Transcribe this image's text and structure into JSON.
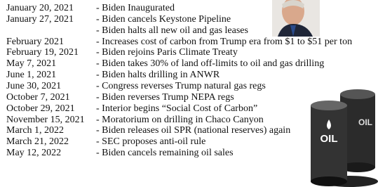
{
  "timeline": [
    {
      "date": "January 20, 2021",
      "event": "- Biden Inaugurated"
    },
    {
      "date": "January 27, 2021",
      "event": "- Biden cancels Keystone Pipeline"
    },
    {
      "event": "- Biden halts all new oil and gas leases"
    },
    {
      "date": "February 2021",
      "event": "- Increases cost of carbon from Trump era from $1 to $51 per ton"
    },
    {
      "date": "February 19, 2021",
      "event": "- Biden rejoins Paris Climate Treaty"
    },
    {
      "date": "May 7, 2021",
      "event": "- Biden takes 30% of land off-limits to oil and gas drilling"
    },
    {
      "date": "June 1, 2021",
      "event": "- Biden halts drilling in ANWR"
    },
    {
      "date": "June 30, 2021",
      "event": "- Congress reverses Trump natural gas regs"
    },
    {
      "date": "October 7, 2021",
      "event": "- Biden reverses Trump NEPA regs"
    },
    {
      "date": "October 29, 2021",
      "event": "- Interior begins “Social Cost of Carbon”"
    },
    {
      "date": "November 15, 2021",
      "event": "- Moratorium on drilling in Chaco Canyon"
    },
    {
      "date": "March 1, 2022",
      "event": "- Biden releases oil SPR (national reserves) again"
    },
    {
      "date": "March 21, 2022",
      "event": "- SEC proposes anti-oil rule"
    },
    {
      "date": "May 12, 2022",
      "event": "- Biden cancels remaining oil sales"
    }
  ],
  "barrel_label": "OIL"
}
